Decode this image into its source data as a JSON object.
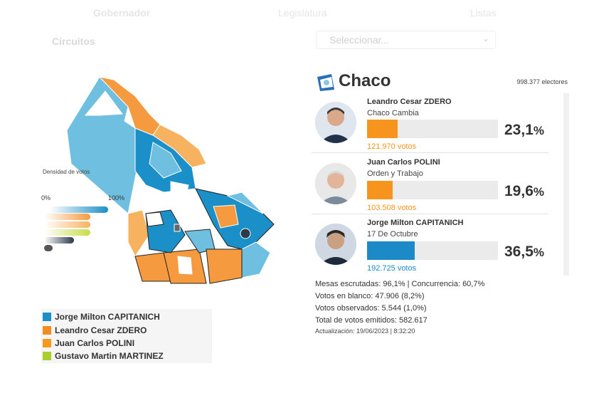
{
  "tabs": {
    "gobernador": "Gobernador",
    "legislatura": "Legislatura",
    "listas": "Listas"
  },
  "filter": {
    "circuitos_label": "Circuitos",
    "select_placeholder": "Seleccionar..."
  },
  "map": {
    "density_label": "Densidad de votos",
    "min_label": "0%",
    "max_label": "100%",
    "colors": {
      "capitanich": "#1b8fc7",
      "capitanich_light": "#6fbfe0",
      "zdero": "#f59a3e",
      "polini": "#f7b25f",
      "martinez": "#c8dc45"
    }
  },
  "legend": [
    {
      "label": "Jorge Milton CAPITANICH",
      "color": "#1b8fc7"
    },
    {
      "label": "Leandro Cesar ZDERO",
      "color": "#f28c1e"
    },
    {
      "label": "Juan Carlos POLINI",
      "color": "#f59a1e"
    },
    {
      "label": "Gustavo Martin MARTINEZ",
      "color": "#a8cf2c"
    }
  ],
  "region": {
    "name": "Chaco",
    "electores": "998.377 electores"
  },
  "candidates": [
    {
      "name": "Leandro Cesar ZDERO",
      "party": "Chaco Cambia",
      "pct_number": "23,1",
      "pct_sign": "%",
      "fraction": 0.231,
      "votes": "121.970 votos",
      "color": "#f7941d"
    },
    {
      "name": "Juan Carlos POLINI",
      "party": "Orden y Trabajo",
      "pct_number": "19,6",
      "pct_sign": "%",
      "fraction": 0.196,
      "votes": "103.508 votos",
      "color": "#f7941d"
    },
    {
      "name": "Jorge Milton CAPITANICH",
      "party": "17 De Octubre",
      "pct_number": "36,5",
      "pct_sign": "%",
      "fraction": 0.365,
      "votes": "192.725 votos",
      "color": "#1c8ac6"
    }
  ],
  "stats": {
    "mesas": "Mesas escrutadas: 96,1% | Concurrencia: 60,7%",
    "blanco": "Votos en blanco: 47.906 (8,2%)",
    "observados": "Votos observados: 5.544 (1,0%)",
    "emitidos": "Total de votos emitidos: 582.617",
    "actualizacion": "Actualización: 19/06/2023 | 8:32:20"
  }
}
